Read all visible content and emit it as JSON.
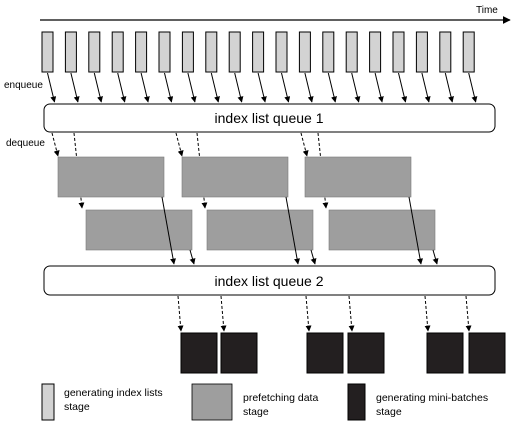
{
  "time_label": "Time",
  "enqueue_label": "enqueue",
  "dequeue_label": "dequeue",
  "queue1": {
    "label": "index list queue 1"
  },
  "queue2": {
    "label": "index list queue 2"
  },
  "legend": {
    "generating": {
      "line1": "generating index lists",
      "line2": "stage"
    },
    "prefetching": {
      "line1": "prefetching data",
      "line2": "stage"
    },
    "minibatch": {
      "line1": "generating mini-batches",
      "line2": "stage"
    }
  },
  "colors": {
    "light_gray": "#d3d3d3",
    "mid_gray": "#9e9e9e",
    "dark": "#231f20",
    "white": "#ffffff",
    "stroke": "#000000"
  }
}
